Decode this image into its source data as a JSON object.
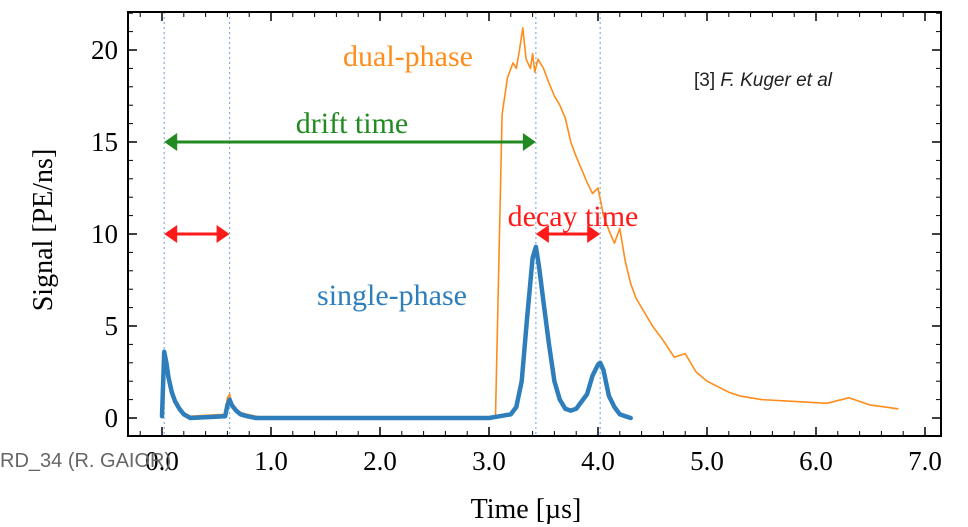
{
  "chart_data": {
    "type": "line",
    "xlabel": "Time [µs]",
    "ylabel": "Signal [PE/ns]",
    "xlim": [
      -0.35,
      7.05
    ],
    "ylim": [
      -1.0,
      22.5
    ],
    "x_ticks": [
      0.0,
      1.0,
      2.0,
      3.0,
      4.0,
      5.0,
      6.0,
      7.0
    ],
    "x_tick_labels": [
      "0.0",
      "1.0",
      "2.0",
      "3.0",
      "4.0",
      "5.0",
      "6.0",
      "7.0"
    ],
    "y_ticks": [
      0,
      5,
      10,
      15,
      20
    ],
    "y_tick_labels": [
      "0",
      "5",
      "10",
      "15",
      "20"
    ],
    "vlines": [
      0.02,
      0.62,
      3.43,
      4.02
    ],
    "series": [
      {
        "name": "dual-phase",
        "color": "#ff8c1a",
        "x": [
          0.0,
          0.02,
          0.04,
          0.06,
          0.09,
          0.12,
          0.16,
          0.2,
          0.26,
          0.58,
          0.6,
          0.62,
          0.64,
          0.68,
          0.72,
          0.78,
          0.86,
          0.95,
          2.96,
          3.06,
          3.12,
          3.17,
          3.22,
          3.25,
          3.28,
          3.31,
          3.34,
          3.38,
          3.4,
          3.42,
          3.45,
          3.5,
          3.55,
          3.6,
          3.65,
          3.7,
          3.75,
          3.8,
          3.85,
          3.9,
          3.95,
          4.0,
          4.05,
          4.1,
          4.15,
          4.2,
          4.25,
          4.3,
          4.35,
          4.4,
          4.5,
          4.6,
          4.7,
          4.8,
          4.9,
          5.0,
          5.1,
          5.2,
          5.3,
          5.5,
          5.8,
          6.1,
          6.3,
          6.5,
          6.75
        ],
        "values": [
          0.2,
          3.3,
          2.8,
          2.0,
          1.4,
          0.9,
          0.6,
          0.3,
          0.1,
          0.2,
          1.1,
          1.3,
          0.8,
          0.5,
          0.3,
          0.2,
          0.1,
          0.0,
          0.0,
          0.1,
          16.5,
          18.5,
          19.3,
          19.0,
          20.0,
          21.2,
          19.5,
          19.0,
          19.8,
          18.8,
          19.5,
          19.0,
          18.2,
          17.5,
          17.0,
          16.3,
          15.0,
          14.2,
          13.5,
          12.8,
          12.2,
          12.5,
          11.0,
          10.2,
          9.5,
          10.3,
          8.5,
          7.3,
          6.5,
          6.0,
          5.0,
          4.2,
          3.3,
          3.5,
          2.5,
          2.0,
          1.7,
          1.4,
          1.2,
          1.0,
          0.9,
          0.8,
          1.1,
          0.7,
          0.5
        ]
      },
      {
        "name": "single-phase",
        "color": "#2e7ebc",
        "x": [
          0.0,
          0.02,
          0.04,
          0.06,
          0.09,
          0.12,
          0.16,
          0.2,
          0.26,
          0.58,
          0.6,
          0.62,
          0.64,
          0.68,
          0.72,
          0.78,
          0.86,
          3.0,
          3.1,
          3.2,
          3.25,
          3.3,
          3.35,
          3.4,
          3.43,
          3.46,
          3.5,
          3.55,
          3.6,
          3.65,
          3.7,
          3.75,
          3.8,
          3.85,
          3.9,
          3.95,
          4.0,
          4.02,
          4.05,
          4.1,
          4.15,
          4.2,
          4.25,
          4.3
        ],
        "values": [
          0.1,
          3.6,
          3.0,
          2.2,
          1.4,
          0.9,
          0.5,
          0.2,
          0.0,
          0.1,
          0.7,
          1.0,
          0.7,
          0.4,
          0.2,
          0.1,
          0.0,
          0.0,
          0.1,
          0.2,
          0.6,
          2.0,
          5.5,
          8.7,
          9.3,
          8.2,
          6.3,
          4.0,
          2.0,
          1.0,
          0.5,
          0.4,
          0.5,
          0.9,
          1.3,
          2.3,
          2.9,
          3.0,
          2.6,
          1.2,
          0.6,
          0.2,
          0.1,
          0.0
        ]
      }
    ],
    "arrows": [
      {
        "label": "drift time",
        "x1": 0.02,
        "x2": 3.43,
        "y": 15.0,
        "color": "#218a21"
      },
      {
        "label": "",
        "x1": 0.02,
        "x2": 0.62,
        "y": 10.0,
        "color": "#ff1a1a"
      },
      {
        "label": "decay time",
        "x1": 3.43,
        "x2": 4.02,
        "y": 10.0,
        "color": "#ff1a1a"
      }
    ],
    "annotations": [
      {
        "text": "dual-phase",
        "color": "#ff8c1a"
      },
      {
        "text": "single-phase",
        "color": "#2e7ebc"
      },
      {
        "text": "drift time",
        "color": "#218a21"
      },
      {
        "text": "decay time",
        "color": "#ff1a1a"
      }
    ]
  },
  "citation": {
    "prefix": "[3] ",
    "authors": "F. Kuger et al"
  },
  "footer": "RD_34 (R. GAIOR)"
}
